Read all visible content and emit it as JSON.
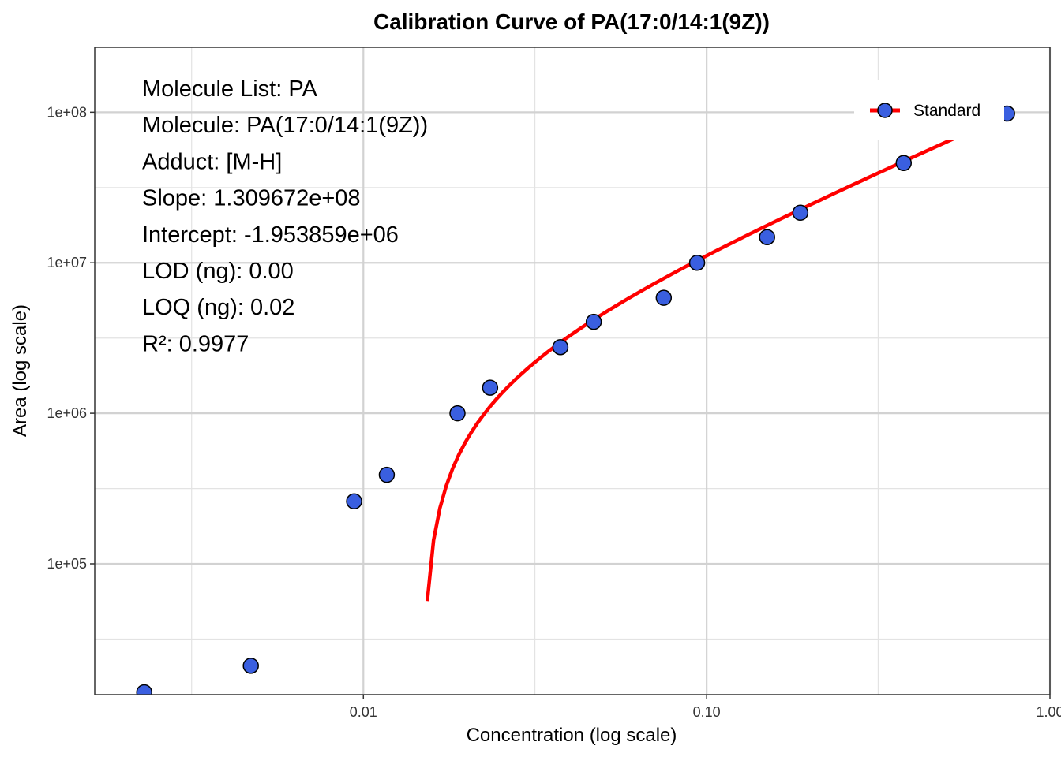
{
  "chart_data": {
    "type": "scatter",
    "title": "Calibration Curve of PA(17:0/14:1(9Z))",
    "xlabel": "Concentration (log scale)",
    "ylabel": "Area (log scale)",
    "x_scale": "log10",
    "y_scale": "log10",
    "xlim": [
      0.00165,
      1.0
    ],
    "ylim": [
      13500,
      270000000
    ],
    "x_ticks": [
      {
        "value": 0.01,
        "label": "0.01"
      },
      {
        "value": 0.1,
        "label": "0.10"
      },
      {
        "value": 1.0,
        "label": "1.00"
      }
    ],
    "x_minor_ticks": [
      0.00316,
      0.0316,
      0.316
    ],
    "y_ticks": [
      {
        "value": 100000,
        "label": "1e+05"
      },
      {
        "value": 1000000,
        "label": "1e+06"
      },
      {
        "value": 10000000,
        "label": "1e+07"
      },
      {
        "value": 100000000,
        "label": "1e+08"
      }
    ],
    "y_minor_ticks": [
      31600,
      316000,
      3160000,
      31600000
    ],
    "grid": true,
    "series": [
      {
        "name": "Standard",
        "kind": "points",
        "color": "#3a5fe0",
        "edge_color": "#000000",
        "x": [
          0.0023,
          0.0047,
          0.0094,
          0.0117,
          0.0188,
          0.0234,
          0.0375,
          0.0469,
          0.075,
          0.0938,
          0.15,
          0.1875,
          0.375,
          0.75
        ],
        "y": [
          14000,
          21000,
          260000,
          390000,
          1000000,
          1480000,
          2750000,
          4050000,
          5850000,
          10000000,
          14800000,
          21500000,
          46000000,
          98000000
        ]
      },
      {
        "name": "Standard",
        "kind": "fit-line",
        "color": "#ff0000",
        "slope": 130967200,
        "intercept": -1953859,
        "x_range": [
          0.0047,
          0.75
        ]
      }
    ],
    "legend": {
      "position": "top-right",
      "entries": [
        "Standard"
      ]
    },
    "annotations": [
      "Molecule List: PA",
      "Molecule: PA(17:0/14:1(9Z))",
      "Adduct: [M-H]",
      "Slope: 1.309672e+08",
      "Intercept: -1.953859e+06",
      "LOD (ng): 0.00",
      "LOQ (ng): 0.02",
      "R²: 0.9977"
    ]
  }
}
